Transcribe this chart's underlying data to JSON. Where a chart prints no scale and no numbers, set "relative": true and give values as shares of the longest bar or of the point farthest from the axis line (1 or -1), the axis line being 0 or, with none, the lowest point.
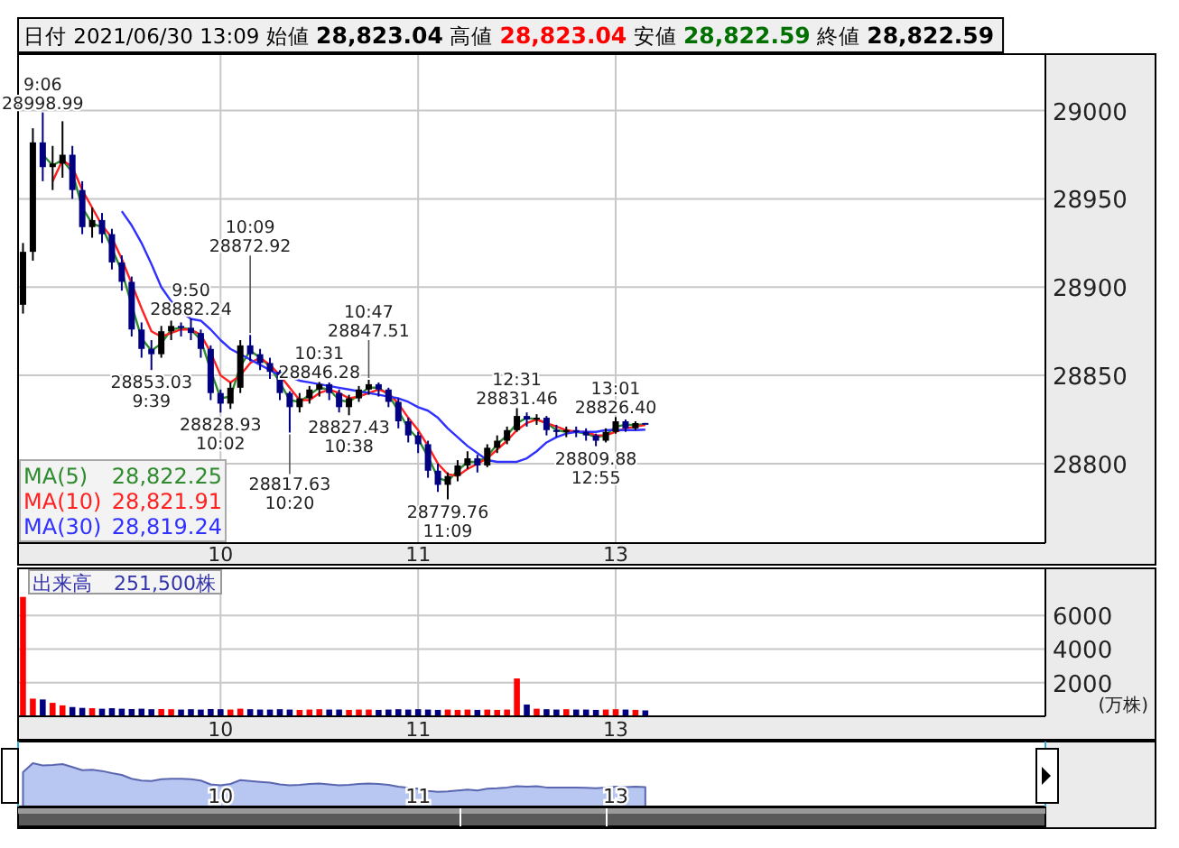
{
  "chart_data": [
    {
      "type": "candlestick",
      "title": "日付 2021/06/30 13:09 始値 **28,823.04** 高値 **28,823.04** 安値 **28,822.59** 終値 **28,822.59**",
      "categories": [
        null,
        null,
        null,
        null,
        null,
        null,
        null,
        null,
        null,
        null,
        null,
        null,
        null,
        null,
        null,
        null,
        null,
        null,
        null,
        null,
        "10",
        null,
        null,
        null,
        null,
        null,
        null,
        null,
        null,
        null,
        null,
        null,
        null,
        null,
        null,
        null,
        null,
        null,
        null,
        null,
        "11",
        null,
        null,
        null,
        null,
        null,
        null,
        null,
        null,
        null,
        null,
        null,
        null,
        null,
        null,
        null,
        null,
        null,
        null,
        null,
        "13",
        null,
        null,
        null,
        null,
        null,
        null,
        null,
        null,
        null,
        null,
        null,
        null,
        null,
        null,
        null,
        null,
        null,
        null,
        null,
        null,
        null,
        null,
        null,
        null,
        null,
        null,
        null,
        null,
        null,
        null,
        null,
        null,
        null,
        null,
        null,
        null,
        null,
        null,
        null,
        null,
        null,
        null,
        null
      ],
      "ohlc": [
        [
          28890,
          28925,
          28885,
          28920
        ],
        [
          28920,
          28990,
          28915,
          28982
        ],
        [
          28982,
          28998.99,
          28960,
          28968
        ],
        [
          28968,
          28980,
          28955,
          28970
        ],
        [
          28970,
          28994,
          28962,
          28975
        ],
        [
          28975,
          28980,
          28950,
          28955
        ],
        [
          28955,
          28960,
          28930,
          28934
        ],
        [
          28934,
          28945,
          28928,
          28938
        ],
        [
          28938,
          28942,
          28925,
          28930
        ],
        [
          28930,
          28933,
          28910,
          28914
        ],
        [
          28914,
          28918,
          28898,
          28903
        ],
        [
          28903,
          28906,
          28872,
          28876
        ],
        [
          28876,
          28880,
          28860,
          28865
        ],
        [
          28865,
          28870,
          28853.03,
          28862
        ],
        [
          28862,
          28878,
          28860,
          28875
        ],
        [
          28875,
          28881,
          28870,
          28878
        ],
        [
          28878,
          28880,
          28872,
          28877
        ],
        [
          28877,
          28882.24,
          28870,
          28874
        ],
        [
          28874,
          28876,
          28860,
          28865
        ],
        [
          28865,
          28867,
          28836,
          28840
        ],
        [
          28840,
          28842,
          28828.93,
          28834
        ],
        [
          28834,
          28846,
          28831,
          28843
        ],
        [
          28843,
          28870,
          28840,
          28867
        ],
        [
          28867,
          28872.92,
          28858,
          28862
        ],
        [
          28862,
          28865,
          28853,
          28857
        ],
        [
          28857,
          28860,
          28848,
          28852
        ],
        [
          28852,
          28854,
          28836,
          28840
        ],
        [
          28840,
          28841,
          28817.63,
          28832
        ],
        [
          28832,
          28840,
          28829,
          28837
        ],
        [
          28837,
          28844,
          28834,
          28842
        ],
        [
          28842,
          28846.28,
          28838,
          28845
        ],
        [
          28845,
          28846,
          28836,
          28840
        ],
        [
          28840,
          28842,
          28829,
          28832
        ],
        [
          28832,
          28839,
          28827.43,
          28837
        ],
        [
          28837,
          28844,
          28835,
          28842
        ],
        [
          28842,
          28847.51,
          28839,
          28845
        ],
        [
          28845,
          28846,
          28838,
          28842
        ],
        [
          28842,
          28843,
          28832,
          28835
        ],
        [
          28835,
          28837,
          28820,
          28824
        ],
        [
          28824,
          28826,
          28812,
          28816
        ],
        [
          28816,
          28818,
          28806,
          28811
        ],
        [
          28811,
          28813,
          28792,
          28796
        ],
        [
          28796,
          28800,
          28784,
          28788
        ],
        [
          28788,
          28795,
          28779.76,
          28793
        ],
        [
          28793,
          28802,
          28790,
          28799
        ],
        [
          28799,
          28807,
          28797,
          28803
        ],
        [
          28803,
          28805,
          28795,
          28799
        ],
        [
          28799,
          28811,
          28798,
          28809
        ],
        [
          28809,
          28816,
          28806,
          28813
        ],
        [
          28813,
          28821,
          28811,
          28819
        ],
        [
          28819,
          28831.46,
          28818,
          28827
        ],
        [
          28827,
          28829,
          28821,
          28825
        ],
        [
          28825,
          28828,
          28822,
          28826
        ],
        [
          28826,
          28827,
          28816,
          28819
        ],
        [
          28819,
          28822,
          28815,
          28818
        ],
        [
          28818,
          28821,
          28815,
          28819
        ],
        [
          28819,
          28821,
          28815,
          28818
        ],
        [
          28818,
          28820,
          28813,
          28816
        ],
        [
          28816,
          28817,
          28809.88,
          28813
        ],
        [
          28813,
          28820,
          28812,
          28818
        ],
        [
          28818,
          28826.4,
          28817,
          28824
        ],
        [
          28824,
          28825,
          28818,
          28820
        ],
        [
          28820,
          28824,
          28819,
          28823
        ],
        [
          28823.04,
          28823.04,
          28822.59,
          28822.59
        ],
        null,
        null,
        null,
        null,
        null,
        null,
        null,
        null,
        null,
        null,
        null,
        null,
        null,
        null,
        null,
        null,
        null,
        null,
        null,
        null,
        null,
        null,
        null,
        null,
        null,
        null,
        null,
        null,
        null,
        null,
        null,
        null,
        null,
        null,
        null,
        null,
        null,
        null,
        null,
        null
      ],
      "colors": [
        "#000000",
        "#000000",
        "#000080",
        "#000000",
        "#000000",
        "#000080",
        "#000080",
        "#000000",
        "#000080",
        "#000080",
        "#000080",
        "#000080",
        "#000080",
        "#000080",
        "#000000",
        "#000000",
        "#000080",
        "#000080",
        "#000080",
        "#000080",
        "#000080",
        "#000000",
        "#000000",
        "#000080",
        "#000080",
        "#000080",
        "#000080",
        "#000080",
        "#000000",
        "#000000",
        "#000000",
        "#000080",
        "#000080",
        "#000000",
        "#000000",
        "#000000",
        "#000080",
        "#000080",
        "#000080",
        "#000080",
        "#000080",
        "#000080",
        "#000080",
        "#000000",
        "#000000",
        "#000000",
        "#000080",
        "#000000",
        "#000000",
        "#000000",
        "#000000",
        "#000080",
        "#000000",
        "#000080",
        "#000080",
        "#000000",
        "#000080",
        "#000080",
        "#000080",
        "#000000",
        "#000000",
        "#000080",
        "#000000",
        "#000080",
        null,
        null,
        null,
        null,
        null,
        null,
        null,
        null,
        null,
        null,
        null,
        null,
        null,
        null,
        null,
        null,
        null,
        null,
        null,
        null,
        null,
        null,
        null,
        null,
        null,
        null,
        null,
        null,
        null,
        null,
        null,
        null,
        null,
        null,
        null,
        null,
        null,
        null,
        null,
        null
      ],
      "series": [
        {
          "name": "MA(5)",
          "type": "line",
          "color": "#2e8b2e",
          "values": [
            null,
            null,
            28975,
            28969,
            28972,
            28965,
            28945,
            28936,
            28934,
            28922,
            28909,
            28890,
            28871,
            28864,
            28868,
            28876,
            28877,
            28876,
            28870,
            28853,
            28837,
            28838,
            28855,
            28864,
            28860,
            28855,
            28846,
            28836,
            28835,
            28839,
            28843,
            28842,
            28836,
            28835,
            28839,
            28843,
            28843,
            28839,
            28830,
            28820,
            28814,
            28804,
            28792,
            28790,
            28796,
            28801,
            28801,
            28804,
            28811,
            28816,
            28823,
            28826,
            28825,
            28823,
            28819,
            28818,
            28818,
            28817,
            28815,
            28816,
            28821,
            28822,
            28822,
            28822.25,
            null,
            null,
            null,
            null,
            null,
            null,
            null,
            null,
            null,
            null,
            null,
            null,
            null,
            null,
            null,
            null,
            null,
            null,
            null,
            null,
            null,
            null,
            null,
            null,
            null,
            null,
            null,
            null,
            null,
            null,
            null,
            null,
            null,
            null,
            null,
            null,
            null,
            null,
            null,
            null
          ]
        },
        {
          "name": "MA(10)",
          "type": "line",
          "color": "#ff2020",
          "values": [
            null,
            null,
            null,
            28960,
            28972,
            28968,
            28955,
            28945,
            28935,
            28928,
            28916,
            28902,
            28888,
            28875,
            28872,
            28874,
            28876,
            28876,
            28873,
            28863,
            28850,
            28846,
            28850,
            28857,
            28860,
            28856,
            28850,
            28843,
            28836,
            28836,
            28840,
            28842,
            28840,
            28837,
            28838,
            28840,
            28842,
            28840,
            28834,
            28826,
            28819,
            28810,
            28800,
            28794,
            28793,
            28797,
            28800,
            28803,
            28808,
            28813,
            28819,
            28823,
            28825,
            28823,
            28821,
            28819,
            28818,
            28818,
            28816,
            28816,
            28818,
            28820,
            28821,
            28821.91,
            null,
            null,
            null,
            null,
            null,
            null,
            null,
            null,
            null,
            null,
            null,
            null,
            null,
            null,
            null,
            null,
            null,
            null,
            null,
            null,
            null,
            null,
            null,
            null,
            null,
            null,
            null,
            null,
            null,
            null,
            null,
            null,
            null,
            null,
            null,
            null,
            null,
            null,
            null,
            null
          ]
        },
        {
          "name": "MA(30)",
          "type": "line",
          "color": "#3030ff",
          "values": [
            null,
            null,
            null,
            null,
            null,
            null,
            null,
            null,
            null,
            null,
            28943,
            28935,
            28925,
            28913,
            28900,
            28892,
            28886,
            28882,
            28881,
            28876,
            28870,
            28865,
            28862,
            28859,
            28856,
            28853,
            28850,
            28849,
            28847,
            28846,
            28845,
            28844,
            28843,
            28842,
            28841,
            28840,
            28839,
            28838,
            28837,
            28835,
            28832,
            28830,
            28826,
            28820,
            28815,
            28810,
            28806,
            28802,
            28801,
            28801,
            28801,
            28803,
            28807,
            28812,
            28815,
            28817,
            28818,
            28818,
            28818,
            28819,
            28819,
            28819,
            28819,
            28819.24,
            null,
            null,
            null,
            null,
            null,
            null,
            null,
            null,
            null,
            null,
            null,
            null,
            null,
            null,
            null,
            null,
            null,
            null,
            null,
            null,
            null,
            null,
            null,
            null,
            null,
            null,
            null,
            null,
            null,
            null,
            null,
            null,
            null,
            null,
            null,
            null,
            null,
            null,
            null,
            null
          ]
        }
      ],
      "ylim": [
        28755,
        29032
      ],
      "yticks": [
        28800,
        28850,
        28900,
        28950,
        29000
      ],
      "grid": true,
      "legend": "bottom left",
      "annotations": [
        "28,822.25",
        "28,821.91",
        "28,819.24",
        {
          "text": "9:06",
          "y": 28998.99
        },
        {
          "text": "28998.99",
          "y": 28998.99
        },
        {
          "text": "28853.03",
          "y": 28853.03
        },
        {
          "text": "9:39",
          "y": 28853.03
        },
        {
          "text": "9:50",
          "y": 28882.24
        },
        {
          "text": "28882.24",
          "y": 28882.24
        },
        {
          "text": "28828.93",
          "y": 28828.93
        },
        {
          "text": "10:02",
          "y": 28828.93
        },
        {
          "text": "10:09",
          "y": 28872.92
        },
        {
          "text": "28872.92",
          "y": 28872.92
        },
        {
          "text": "28817.63",
          "y": 28817.63
        },
        {
          "text": "10:20",
          "y": 28817.63
        },
        {
          "text": "10:31",
          "y": 28846.28
        },
        {
          "text": "28846.28",
          "y": 28846.28
        },
        {
          "text": "28827.43",
          "y": 28827.43
        },
        {
          "text": "10:38",
          "y": 28827.43
        },
        {
          "text": "10:47",
          "y": 28847.51
        },
        {
          "text": "28847.51",
          "y": 28847.51
        },
        {
          "text": "28779.76",
          "y": 28779.76
        },
        {
          "text": "11:09",
          "y": 28779.76
        },
        {
          "text": "12:31",
          "y": 28831.46
        },
        {
          "text": "28831.46",
          "y": 28831.46
        },
        {
          "text": "28809.88",
          "y": 28809.88
        },
        {
          "text": "12:55",
          "y": 28809.88
        },
        {
          "text": "13:01",
          "y": 28826.4
        },
        {
          "text": "28826.40",
          "y": 28826.4
        }
      ]
    },
    {
      "type": "bar",
      "title": "出来高",
      "subtitle": "251,500株",
      "ylabel": "(万株)",
      "categories": [
        null,
        null,
        null,
        null,
        null,
        null,
        null,
        null,
        null,
        null,
        null,
        null,
        null,
        null,
        null,
        null,
        null,
        null,
        null,
        null,
        "10",
        null,
        null,
        null,
        null,
        null,
        null,
        null,
        null,
        null,
        null,
        null,
        null,
        null,
        null,
        null,
        null,
        null,
        null,
        null,
        "11",
        null,
        null,
        null,
        null,
        null,
        null,
        null,
        null,
        null,
        null,
        null,
        null,
        null,
        null,
        null,
        null,
        null,
        null,
        null,
        "13",
        null,
        null,
        null,
        null,
        null,
        null,
        null,
        null,
        null,
        null,
        null,
        null,
        null,
        null,
        null,
        null,
        null,
        null,
        null,
        null,
        null,
        null,
        null,
        null,
        null,
        null,
        null,
        null,
        null,
        null,
        null,
        null,
        null,
        null,
        null,
        null,
        null,
        null,
        null,
        null,
        null,
        null,
        null
      ],
      "values": [
        7100,
        1050,
        1000,
        800,
        650,
        550,
        500,
        480,
        450,
        480,
        450,
        430,
        450,
        420,
        430,
        420,
        400,
        420,
        400,
        430,
        420,
        400,
        450,
        420,
        400,
        400,
        420,
        400,
        380,
        400,
        420,
        400,
        400,
        380,
        400,
        400,
        380,
        400,
        420,
        400,
        420,
        400,
        380,
        400,
        380,
        400,
        380,
        400,
        380,
        400,
        2250,
        700,
        450,
        420,
        400,
        420,
        400,
        400,
        380,
        400,
        420,
        400,
        380,
        350,
        null,
        null,
        null,
        null,
        null,
        null,
        null,
        null,
        null,
        null,
        null,
        null,
        null,
        null,
        null,
        null,
        null,
        null,
        null,
        null,
        null,
        null,
        null,
        null,
        null,
        null,
        null,
        null,
        null,
        null,
        null,
        null,
        null,
        null,
        null,
        null,
        null,
        null,
        null,
        null
      ],
      "colors": [
        "#ff0000",
        "#ff0000",
        "#000080",
        "#ff0000",
        "#ff0000",
        "#000080",
        "#000080",
        "#ff0000",
        "#000080",
        "#000080",
        "#000080",
        "#000080",
        "#000080",
        "#000080",
        "#ff0000",
        "#ff0000",
        "#000080",
        "#000080",
        "#000080",
        "#000080",
        "#000080",
        "#ff0000",
        "#ff0000",
        "#000080",
        "#000080",
        "#000080",
        "#000080",
        "#000080",
        "#ff0000",
        "#ff0000",
        "#ff0000",
        "#000080",
        "#000080",
        "#ff0000",
        "#ff0000",
        "#ff0000",
        "#000080",
        "#000080",
        "#000080",
        "#000080",
        "#000080",
        "#000080",
        "#000080",
        "#ff0000",
        "#ff0000",
        "#ff0000",
        "#000080",
        "#ff0000",
        "#ff0000",
        "#ff0000",
        "#ff0000",
        "#000080",
        "#ff0000",
        "#000080",
        "#000080",
        "#ff0000",
        "#000080",
        "#000080",
        "#000080",
        "#ff0000",
        "#ff0000",
        "#000080",
        "#ff0000",
        "#000080",
        null,
        null,
        null,
        null,
        null,
        null,
        null,
        null,
        null,
        null,
        null,
        null,
        null,
        null,
        null,
        null,
        null,
        null,
        null,
        null,
        null,
        null,
        null,
        null,
        null,
        null,
        null,
        null,
        null,
        null,
        null,
        null,
        null,
        null,
        null,
        null,
        null,
        null,
        null,
        null
      ],
      "ylim": [
        0,
        8800
      ],
      "yticks": [
        2000,
        4000,
        6000
      ],
      "grid": true
    },
    {
      "type": "area",
      "relative": true,
      "color": "#b8c6f2",
      "categories": [
        null,
        null,
        null,
        null,
        null,
        null,
        null,
        null,
        null,
        null,
        null,
        null,
        null,
        null,
        null,
        null,
        null,
        null,
        null,
        null,
        "10",
        null,
        null,
        null,
        null,
        null,
        null,
        null,
        null,
        null,
        null,
        null,
        null,
        null,
        null,
        null,
        null,
        null,
        null,
        null,
        "11",
        null,
        null,
        null,
        null,
        null,
        null,
        null,
        null,
        null,
        null,
        null,
        null,
        null,
        null,
        null,
        null,
        null,
        null,
        null,
        "13",
        null,
        null,
        null,
        null,
        null,
        null,
        null,
        null,
        null,
        null,
        null,
        null,
        null,
        null,
        null,
        null,
        null,
        null,
        null,
        null,
        null,
        null,
        null,
        null,
        null,
        null,
        null,
        null,
        null,
        null,
        null,
        null,
        null,
        null,
        null,
        null,
        null,
        null,
        null,
        null,
        null,
        null,
        null
      ],
      "values": [
        0.79,
        1.0,
        0.95,
        0.96,
        0.98,
        0.91,
        0.84,
        0.85,
        0.82,
        0.77,
        0.73,
        0.64,
        0.6,
        0.59,
        0.63,
        0.64,
        0.64,
        0.63,
        0.6,
        0.51,
        0.49,
        0.52,
        0.61,
        0.59,
        0.57,
        0.55,
        0.51,
        0.49,
        0.5,
        0.52,
        0.53,
        0.51,
        0.49,
        0.5,
        0.52,
        0.53,
        0.52,
        0.5,
        0.46,
        0.43,
        0.41,
        0.36,
        0.34,
        0.35,
        0.37,
        0.39,
        0.37,
        0.41,
        0.42,
        0.44,
        0.47,
        0.46,
        0.47,
        0.44,
        0.44,
        0.44,
        0.44,
        0.43,
        0.42,
        0.44,
        0.46,
        0.45,
        0.46,
        0.45,
        null,
        null,
        null,
        null,
        null,
        null,
        null,
        null,
        null,
        null,
        null,
        null,
        null,
        null,
        null,
        null,
        null,
        null,
        null,
        null,
        null,
        null,
        null,
        null,
        null,
        null,
        null,
        null,
        null,
        null,
        null,
        null,
        null,
        null,
        null,
        null,
        null,
        null,
        null,
        null
      ]
    }
  ]
}
